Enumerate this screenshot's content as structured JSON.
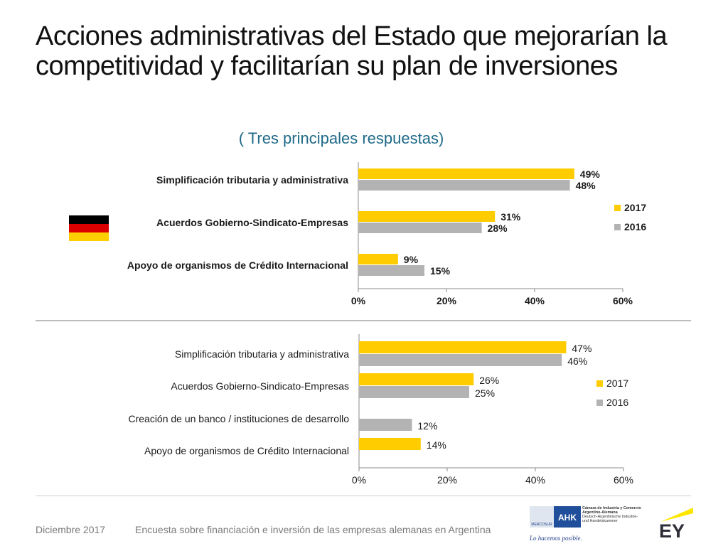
{
  "title": "Acciones administrativas del Estado que mejorarían la competitividad y facilitarían su plan de inversiones",
  "subtitle": "( Tres principales respuestas)",
  "colors": {
    "y2017": "#ffcc00",
    "y2016": "#b3b3b3",
    "subtitle": "#1f6a88",
    "ey_yellow": "#ffe600"
  },
  "flag": {
    "country": "Germany",
    "stripes": [
      "#000000",
      "#dd0000",
      "#ffce00"
    ]
  },
  "chart_data": [
    {
      "type": "bar",
      "orientation": "horizontal",
      "title": "( Tres principales respuestas)",
      "categories": [
        "Simplificación tributaria y administrativa",
        "Acuerdos Gobierno-Sindicato-Empresas",
        "Apoyo de organismos de Crédito Internacional"
      ],
      "series": [
        {
          "name": "2017",
          "values": [
            49,
            31,
            9
          ],
          "labels": [
            "49%",
            "31%",
            "9%"
          ]
        },
        {
          "name": "2016",
          "values": [
            48,
            28,
            15
          ],
          "labels": [
            "48%",
            "28%",
            "15%"
          ]
        }
      ],
      "xlim": [
        0,
        60
      ],
      "xticks": [
        "0%",
        "20%",
        "40%",
        "60%"
      ],
      "legend": "right",
      "bold": true
    },
    {
      "type": "bar",
      "orientation": "horizontal",
      "categories": [
        "Simplificación tributaria y administrativa",
        "Acuerdos Gobierno-Sindicato-Empresas",
        "Creación de un banco / instituciones de desarrollo",
        "Apoyo de organismos de Crédito Internacional"
      ],
      "series": [
        {
          "name": "2017",
          "values": [
            47,
            26,
            null,
            14
          ],
          "labels": [
            "47%",
            "26%",
            "",
            "14%"
          ]
        },
        {
          "name": "2016",
          "values": [
            46,
            25,
            12,
            null
          ],
          "labels": [
            "46%",
            "25%",
            "12%",
            ""
          ]
        }
      ],
      "xlim": [
        0,
        60
      ],
      "xticks": [
        "0%",
        "20%",
        "40%",
        "60%"
      ],
      "legend": "right",
      "bold": false
    }
  ],
  "footer": {
    "date": "Diciembre 2017",
    "survey": "Encuesta sobre financiación e inversión de las empresas alemanas en Argentina"
  },
  "logos": {
    "ahk_abbr": "AHK",
    "ahk_name": "Cámara de Industria y Comercio Argentino-Alemana",
    "ahk_name_de": "Deutsch-Argentinische Industrie- und Handelskammer",
    "ahk_slogan": "Lo hacemos posible.",
    "ahk_mercosur": "MERCOSUR",
    "ey": "EY"
  }
}
